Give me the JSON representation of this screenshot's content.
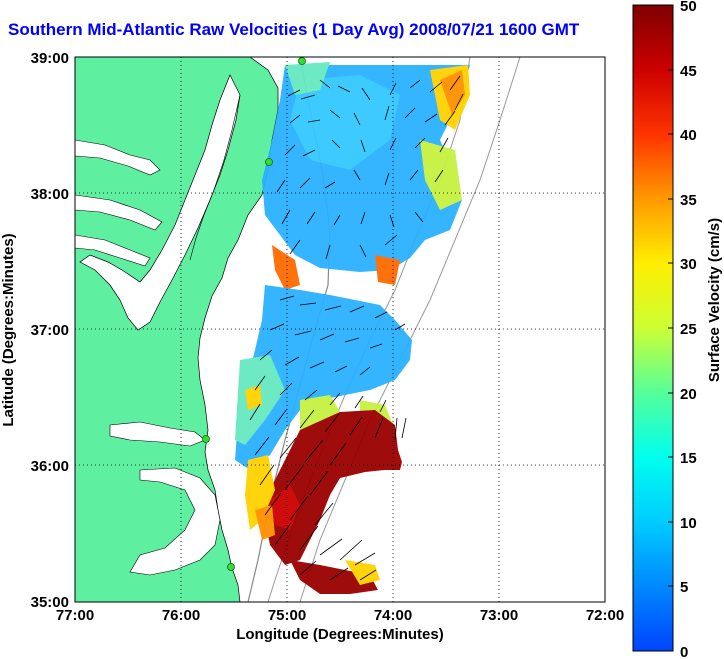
{
  "title": "Southern Mid-Atlantic Raw Velocities (1 Day Avg) 2008/07/21 1600 GMT",
  "map": {
    "x_axis": {
      "label": "Longitude (Degrees:Minutes)",
      "ticks": [
        "77:00",
        "76:00",
        "75:00",
        "74:00",
        "73:00",
        "72:00"
      ]
    },
    "y_axis": {
      "label": "Latitude (Degrees:Minutes)",
      "ticks": [
        "35:00",
        "36:00",
        "37:00",
        "38:00",
        "39:00"
      ]
    },
    "grid": "dotted",
    "land_color": "#5ef0a0",
    "water_color": "#ffffff"
  },
  "colorbar": {
    "label": "Surface Velocity (cm/s)",
    "range": [
      0,
      50
    ],
    "ticks": [
      "0",
      "5",
      "10",
      "15",
      "20",
      "25",
      "30",
      "35",
      "40",
      "45",
      "50"
    ],
    "colors": [
      "#0055ff",
      "#00aaff",
      "#00ffff",
      "#55ffaa",
      "#aaff55",
      "#ffff00",
      "#ffaa00",
      "#ff5500",
      "#ff0000",
      "#aa0000",
      "#800000"
    ]
  }
}
